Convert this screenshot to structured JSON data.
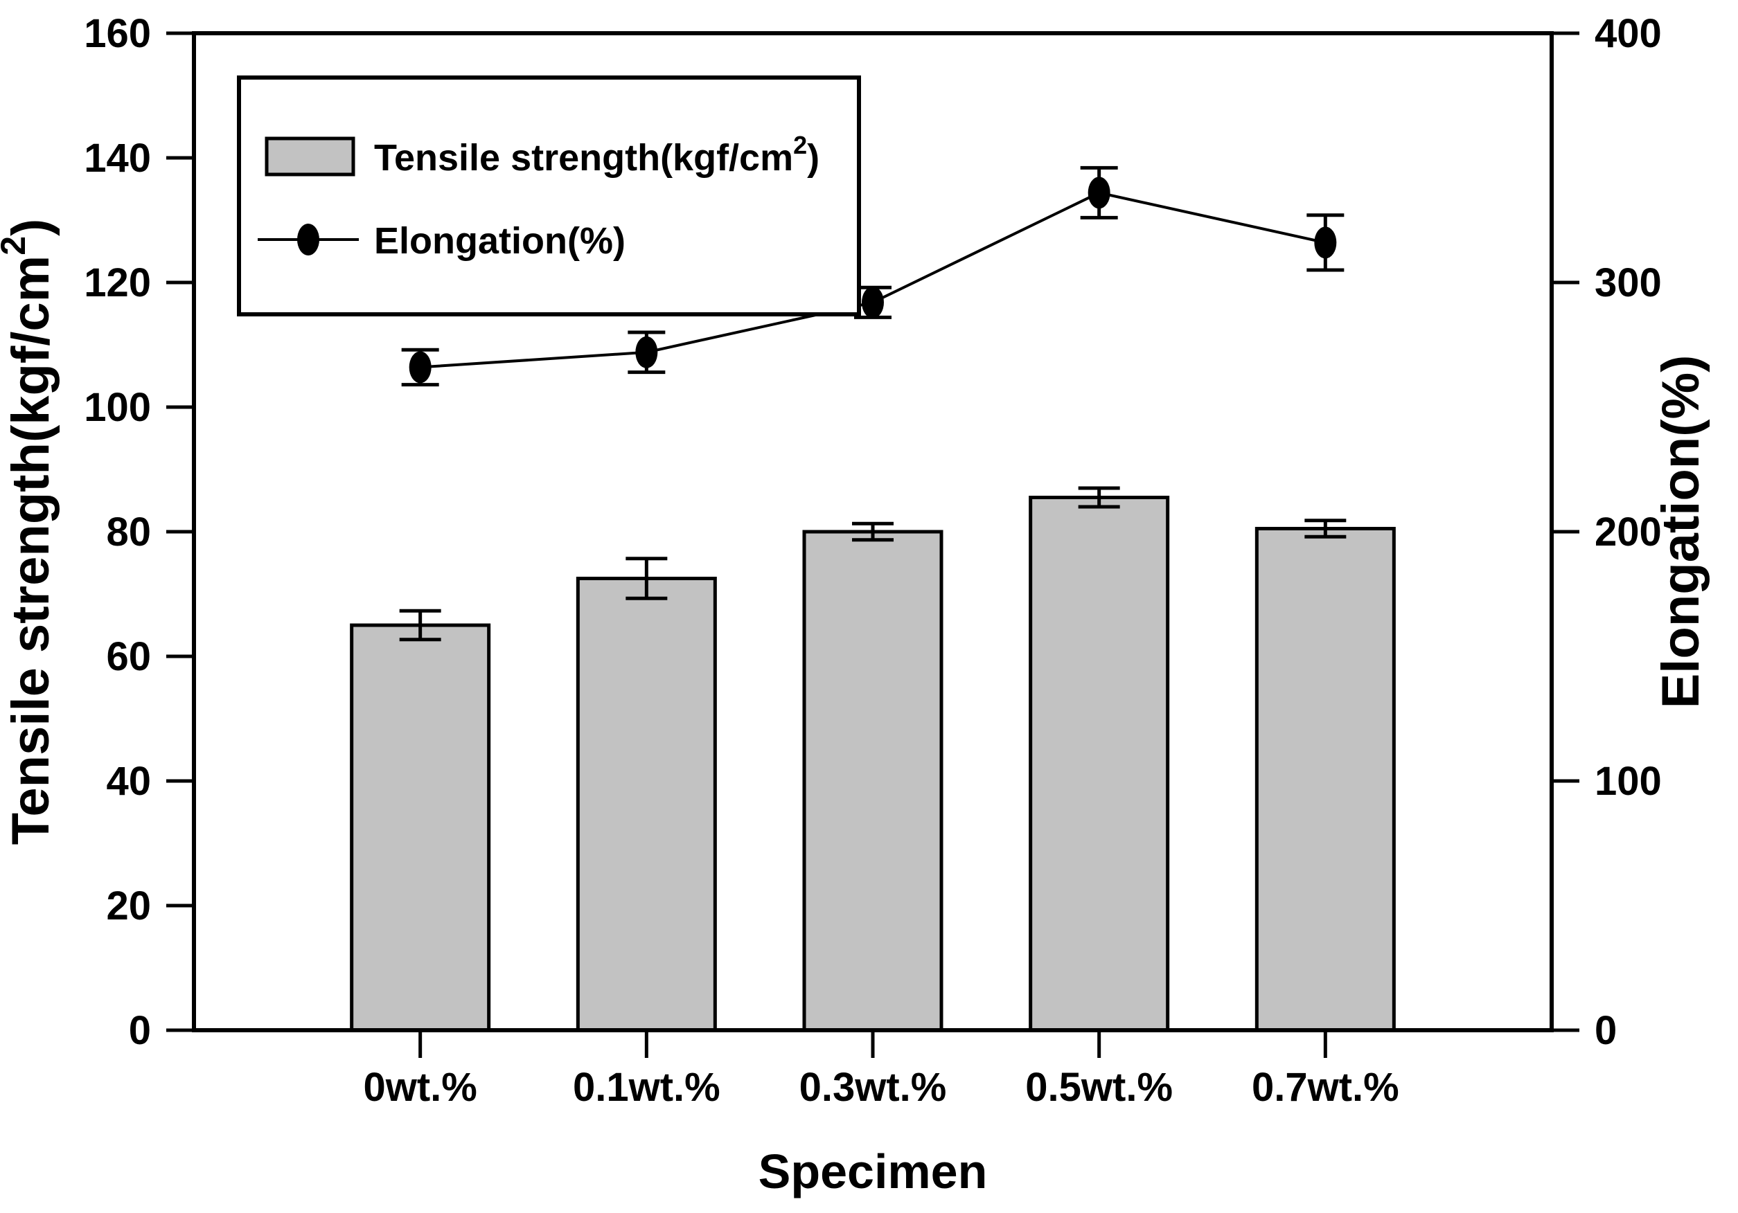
{
  "figure": {
    "background": "#ffffff",
    "frame_color": "#000000"
  },
  "chart_data": {
    "type": "bar",
    "overlay": "line",
    "title": "",
    "xlabel": "Specimen",
    "ylabel_left": "Tensile strength(kgf/cm²)",
    "ylabel_right": "Elongation(%)",
    "categories": [
      "0wt.%",
      "0.1wt.%",
      "0.3wt.%",
      "0.5wt.%",
      "0.7wt.%"
    ],
    "series": [
      {
        "name": "Tensile strength(kgf/cm²)",
        "type": "bar",
        "axis": "left",
        "color": "#c2c2c2",
        "edge_color": "#000000",
        "values": [
          65,
          72.5,
          80,
          85.5,
          80.5
        ],
        "errors": [
          2.3,
          3.2,
          1.3,
          1.5,
          1.3
        ]
      },
      {
        "name": "Elongation(%)",
        "type": "line",
        "axis": "right",
        "color": "#000000",
        "marker": "filled-circle",
        "values": [
          266,
          272,
          292,
          336,
          316
        ],
        "errors": [
          7,
          8,
          6,
          10,
          11
        ]
      }
    ],
    "y_left": {
      "min": 0,
      "max": 160,
      "ticks": [
        0,
        20,
        40,
        60,
        80,
        100,
        120,
        140,
        160
      ]
    },
    "y_right": {
      "min": 0,
      "max": 400,
      "ticks": [
        0,
        100,
        200,
        300,
        400
      ]
    },
    "legend": {
      "position": "top-left",
      "items": [
        "Tensile strength(kgf/cm²)",
        "Elongation(%)"
      ]
    },
    "grid": false
  }
}
